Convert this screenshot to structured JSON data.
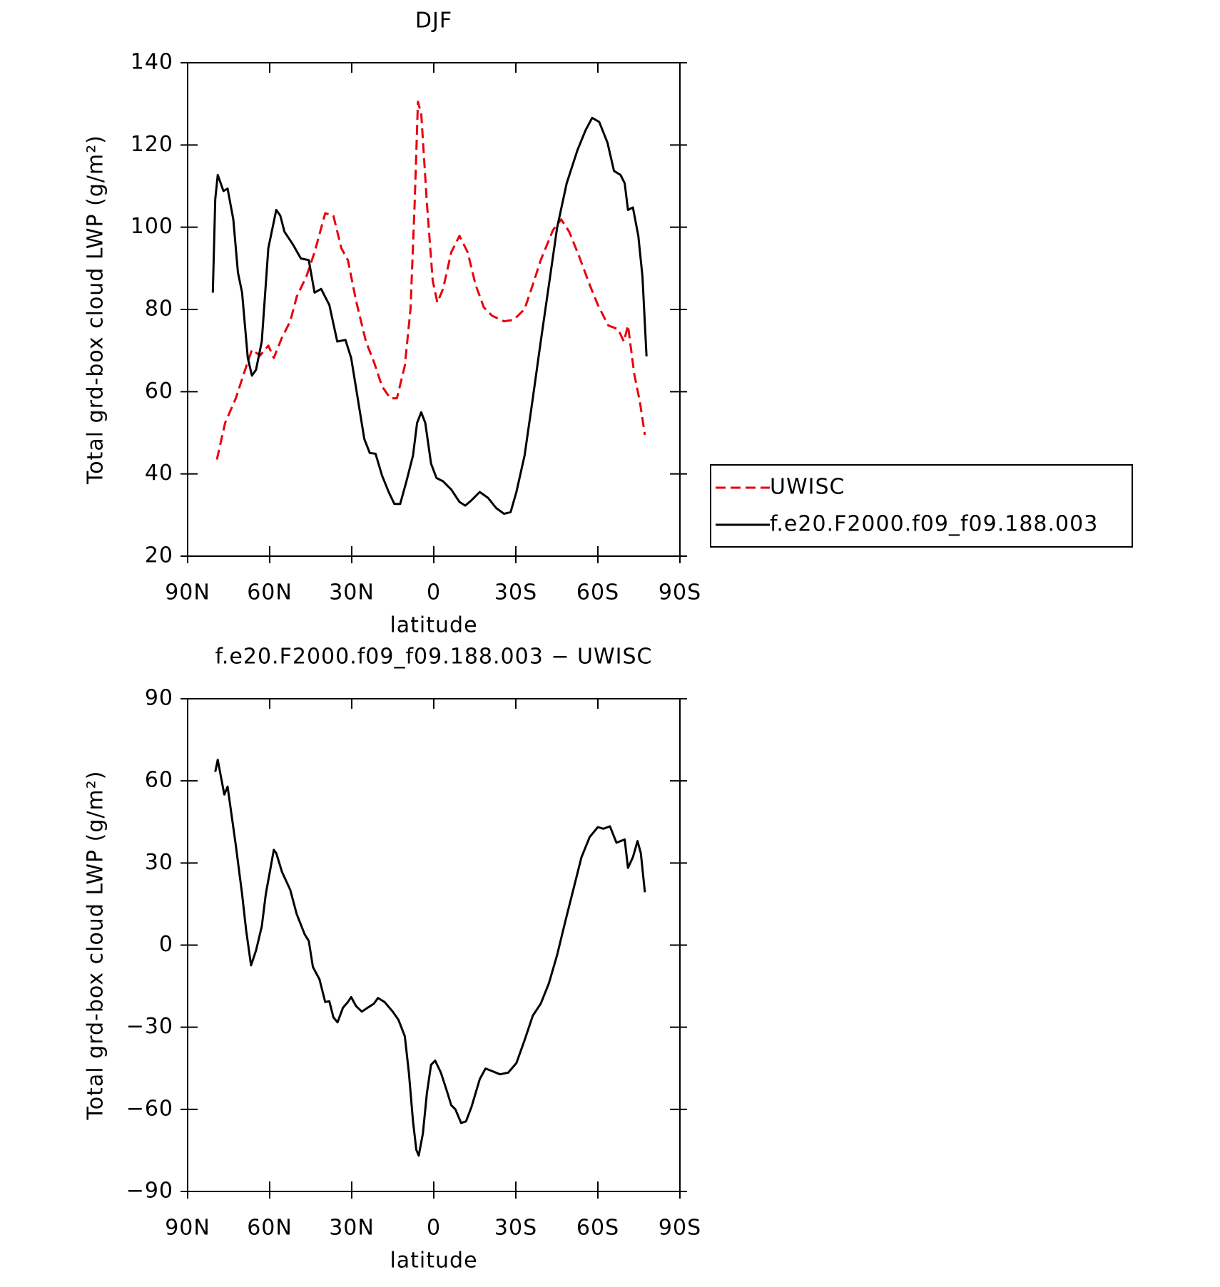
{
  "chart_data": [
    {
      "type": "line",
      "title": "DJF",
      "xlabel": "latitude",
      "ylabel": "Total grd-box cloud LWP (g/m²)",
      "xlim": [
        90,
        -90
      ],
      "xticks": [
        {
          "value": 90,
          "label": "90N"
        },
        {
          "value": 60,
          "label": "60N"
        },
        {
          "value": 30,
          "label": "30N"
        },
        0,
        {
          "value": -30,
          "label": "30S"
        },
        {
          "value": -60,
          "label": "60S"
        },
        {
          "value": -90,
          "label": "90S"
        }
      ],
      "ylim": [
        20,
        140
      ],
      "yticks": [
        20,
        40,
        60,
        80,
        100,
        120,
        140
      ],
      "legend": "outside-right",
      "series": [
        {
          "name": "UWISC",
          "color": "#e8000b",
          "dashed": true,
          "x": [
            79.3,
            76.3,
            72.4,
            69.5,
            66.5,
            63.5,
            60.5,
            58.5,
            55.5,
            52.5,
            50.1,
            46.6,
            43.6,
            39.7,
            36.7,
            33.8,
            31.4,
            28.4,
            24.8,
            21.9,
            18.9,
            15.9,
            13.5,
            10.6,
            8.5,
            7.0,
            5.8,
            4.6,
            2.5,
            0.4,
            -1.3,
            -3.4,
            -6.4,
            -9.4,
            -12.4,
            -15.3,
            -18.3,
            -21.3,
            -25.7,
            -29.3,
            -33.2,
            -36.2,
            -39.1,
            -43.6,
            -46.6,
            -49.5,
            -53.1,
            -57.0,
            -60.0,
            -63.8,
            -67.4,
            -69.5,
            -71.0,
            -73.3,
            -75.4,
            -77.2
          ],
          "values": [
            43.5,
            52.4,
            58.4,
            64.3,
            70.2,
            68.8,
            71.2,
            68.2,
            73.2,
            77.1,
            83.1,
            88.0,
            93.9,
            103.4,
            102.8,
            94.9,
            92.0,
            82.1,
            72.2,
            67.3,
            61.3,
            58.4,
            58.4,
            66.3,
            80.1,
            105.8,
            130.5,
            127.6,
            105.8,
            87.0,
            81.7,
            85.0,
            93.9,
            97.9,
            93.9,
            86.0,
            80.5,
            78.5,
            77.1,
            77.5,
            80.1,
            86.0,
            92.0,
            99.3,
            101.9,
            98.9,
            93.0,
            86.0,
            81.1,
            76.1,
            75.2,
            72.2,
            76.1,
            64.3,
            57.4,
            49.5
          ]
        },
        {
          "name": "f.e20.F2000.f09_f09.188.003",
          "color": "#000000",
          "dashed": false,
          "x": [
            80.8,
            79.9,
            79.0,
            76.9,
            75.4,
            73.3,
            71.6,
            70.1,
            68.0,
            66.5,
            65.0,
            62.9,
            60.5,
            57.6,
            56.1,
            54.6,
            51.6,
            48.6,
            45.7,
            43.6,
            41.2,
            38.2,
            35.3,
            32.3,
            30.2,
            27.8,
            25.4,
            23.4,
            21.3,
            18.9,
            16.5,
            14.4,
            12.3,
            10.0,
            7.6,
            6.1,
            4.6,
            3.1,
            1.0,
            -1.0,
            -3.4,
            -6.4,
            -9.4,
            -11.5,
            -13.8,
            -16.8,
            -19.8,
            -22.8,
            -25.7,
            -28.1,
            -30.2,
            -33.2,
            -36.2,
            -39.1,
            -42.1,
            -45.1,
            -48.6,
            -52.5,
            -55.5,
            -57.9,
            -60.5,
            -63.5,
            -65.9,
            -68.3,
            -69.8,
            -71.0,
            -72.8,
            -74.8,
            -76.3,
            -77.8
          ],
          "values": [
            84.1,
            106.8,
            112.7,
            108.8,
            109.4,
            101.9,
            89.0,
            84.1,
            68.2,
            63.9,
            65.3,
            72.2,
            94.9,
            104.2,
            102.8,
            98.9,
            95.9,
            92.4,
            92.0,
            84.1,
            85.0,
            81.1,
            72.2,
            72.6,
            68.2,
            58.4,
            48.5,
            45.1,
            44.9,
            39.6,
            35.6,
            32.7,
            32.7,
            38.2,
            44.5,
            52.4,
            55.0,
            52.4,
            42.5,
            39.0,
            38.2,
            36.2,
            33.2,
            32.3,
            33.6,
            35.6,
            34.2,
            31.7,
            30.3,
            30.7,
            35.6,
            44.5,
            58.4,
            72.2,
            86.0,
            99.9,
            110.7,
            118.7,
            123.6,
            126.6,
            125.6,
            120.6,
            113.7,
            112.7,
            110.7,
            104.2,
            104.8,
            97.9,
            88.0,
            68.6
          ]
        }
      ]
    },
    {
      "type": "line",
      "title": "f.e20.F2000.f09_f09.188.003 − UWISC",
      "xlabel": "latitude",
      "ylabel": "Total grd-box cloud LWP (g/m²)",
      "xlim": [
        90,
        -90
      ],
      "xticks": [
        {
          "value": 90,
          "label": "90N"
        },
        {
          "value": 60,
          "label": "60N"
        },
        {
          "value": 30,
          "label": "30N"
        },
        0,
        {
          "value": -30,
          "label": "30S"
        },
        {
          "value": -60,
          "label": "60S"
        },
        {
          "value": -90,
          "label": "90S"
        }
      ],
      "ylim": [
        -90,
        90
      ],
      "yticks": [
        {
          "value": -90,
          "label": "−90"
        },
        {
          "value": -60,
          "label": "−60"
        },
        {
          "value": -30,
          "label": "−30"
        },
        0,
        30,
        60,
        90
      ],
      "series": [
        {
          "color": "#000000",
          "dashed": false,
          "x": [
            79.9,
            79.0,
            76.6,
            75.4,
            72.4,
            70.1,
            68.6,
            66.8,
            65.0,
            62.9,
            61.4,
            58.5,
            57.6,
            55.5,
            52.5,
            50.1,
            47.2,
            45.7,
            44.2,
            41.8,
            39.7,
            38.2,
            36.7,
            35.2,
            33.2,
            31.4,
            30.2,
            28.4,
            26.3,
            24.2,
            21.9,
            20.4,
            18.0,
            15.0,
            12.9,
            10.6,
            9.1,
            7.6,
            6.4,
            5.5,
            4.0,
            2.5,
            1.0,
            -0.5,
            -2.6,
            -5.0,
            -6.4,
            -7.9,
            -10.0,
            -11.8,
            -13.8,
            -16.8,
            -18.9,
            -21.3,
            -24.2,
            -27.2,
            -30.2,
            -33.2,
            -36.2,
            -39.1,
            -42.1,
            -45.1,
            -48.0,
            -51.0,
            -54.0,
            -57.0,
            -60.0,
            -62.0,
            -64.4,
            -66.8,
            -69.8,
            -71.0,
            -72.8,
            -74.5,
            -75.7,
            -77.2
          ],
          "values": [
            63.3,
            67.7,
            55.0,
            57.9,
            36.5,
            18.7,
            5.4,
            -7.4,
            -2.0,
            6.8,
            18.7,
            34.8,
            33.6,
            26.7,
            20.2,
            11.3,
            3.9,
            1.5,
            -8.0,
            -12.5,
            -20.8,
            -20.5,
            -26.4,
            -28.2,
            -22.9,
            -20.8,
            -19.0,
            -22.3,
            -24.3,
            -22.9,
            -21.4,
            -19.3,
            -20.8,
            -24.3,
            -27.3,
            -33.3,
            -46.6,
            -64.4,
            -74.8,
            -76.9,
            -68.9,
            -54.0,
            -43.7,
            -42.2,
            -46.6,
            -54.0,
            -58.5,
            -60.0,
            -65.0,
            -64.4,
            -59.1,
            -49.0,
            -45.1,
            -46.0,
            -47.2,
            -46.6,
            -43.1,
            -34.7,
            -25.8,
            -21.4,
            -13.9,
            -3.6,
            8.3,
            20.2,
            32.1,
            39.5,
            43.1,
            42.5,
            43.4,
            37.4,
            38.6,
            28.2,
            32.1,
            38.0,
            33.6,
            19.3
          ]
        }
      ]
    }
  ]
}
